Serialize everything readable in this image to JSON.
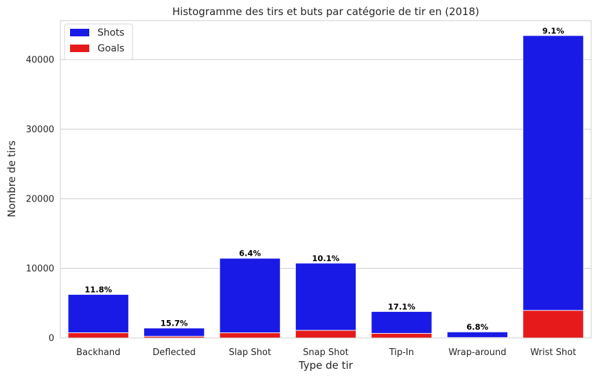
{
  "chart_data": {
    "type": "bar",
    "title": "Histogramme des tirs et buts par catégorie de tir en (2018)",
    "xlabel": "Type de tir",
    "ylabel": "Nombre de tirs",
    "categories": [
      "Backhand",
      "Deflected",
      "Slap Shot",
      "Snap Shot",
      "Tip-In",
      "Wrap-around",
      "Wrist Shot"
    ],
    "series": [
      {
        "name": "Shots",
        "color": "#1a1ae6",
        "values": [
          6250,
          1420,
          11450,
          10750,
          3800,
          870,
          43450
        ]
      },
      {
        "name": "Goals",
        "color": "#e61a1a",
        "values": [
          740,
          223,
          733,
          1086,
          650,
          59,
          3954
        ]
      }
    ],
    "labels": [
      "11.8%",
      "15.7%",
      "6.4%",
      "10.1%",
      "17.1%",
      "6.8%",
      "9.1%"
    ],
    "ylim": [
      0,
      45600
    ],
    "yticks": [
      0,
      10000,
      20000,
      30000,
      40000
    ],
    "grid": true,
    "legend": "top-left",
    "stacking": "overlaid"
  }
}
